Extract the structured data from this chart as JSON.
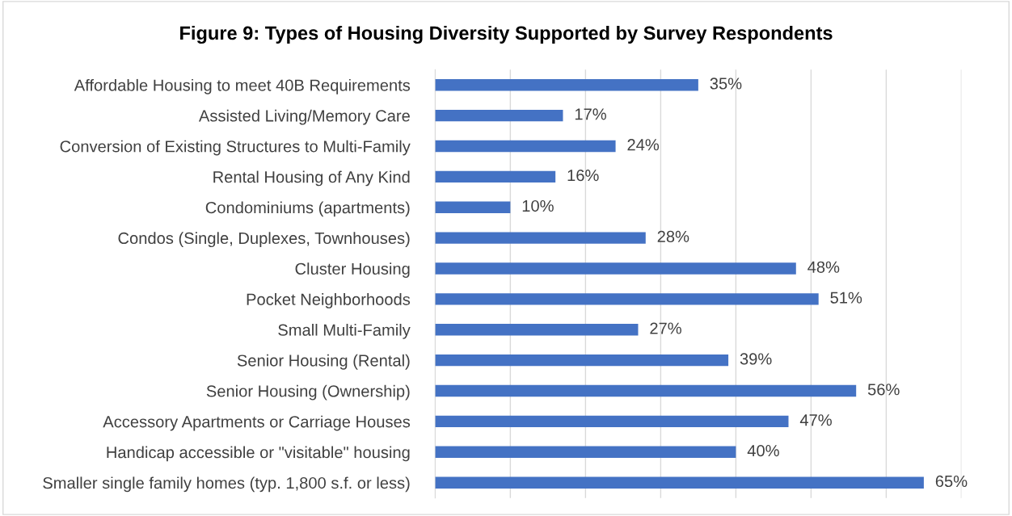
{
  "chart_data": {
    "type": "bar",
    "orientation": "horizontal",
    "title": "Figure 9: Types of Housing Diversity Supported by Survey Respondents",
    "categories": [
      "Affordable Housing to meet 40B Requirements",
      "Assisted Living/Memory Care",
      "Conversion of Existing Structures to Multi-Family",
      "Rental Housing of Any Kind",
      "Condominiums (apartments)",
      "Condos (Single, Duplexes, Townhouses)",
      "Cluster Housing",
      "Pocket Neighborhoods",
      "Small Multi-Family",
      "Senior Housing (Rental)",
      "Senior Housing (Ownership)",
      "Accessory Apartments or Carriage Houses",
      "Handicap accessible or \"visitable\" housing",
      "Smaller single family homes (typ. 1,800 s.f. or less)"
    ],
    "values": [
      35,
      17,
      24,
      16,
      10,
      28,
      48,
      51,
      27,
      39,
      56,
      47,
      40,
      65
    ],
    "value_labels": [
      "35%",
      "17%",
      "24%",
      "16%",
      "10%",
      "28%",
      "48%",
      "51%",
      "27%",
      "39%",
      "56%",
      "47%",
      "40%",
      "65%"
    ],
    "color": "#4472c4",
    "xlim": [
      0,
      70
    ],
    "xticks": [
      {
        "value": 0,
        "label": null
      },
      {
        "value": 10,
        "label": null
      },
      {
        "value": 20,
        "label": null
      },
      {
        "value": 30,
        "label": null
      },
      {
        "value": 40,
        "label": null
      },
      {
        "value": 50,
        "label": null
      },
      {
        "value": 60,
        "label": null
      },
      {
        "value": 70,
        "label": null
      }
    ],
    "grid": "x",
    "tick_labels": "y"
  }
}
